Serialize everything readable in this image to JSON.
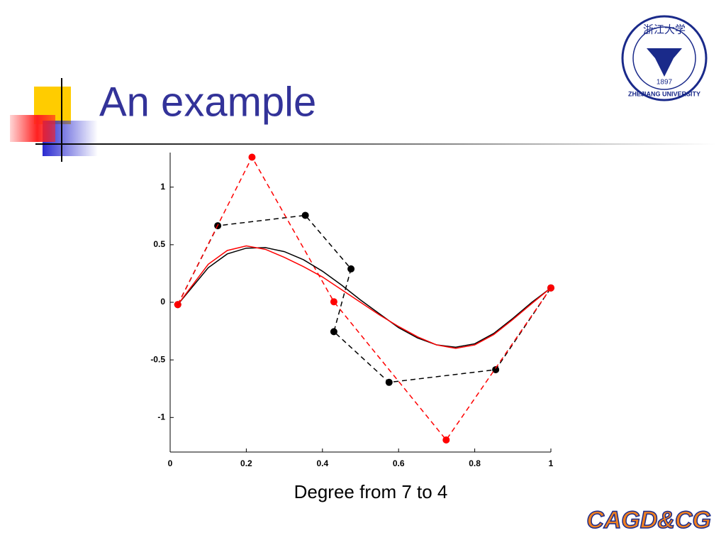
{
  "title": "An example",
  "logo": {
    "chinese": "浙江大学",
    "year": "1897",
    "name": "ZHEJIANG UNIVERSITY"
  },
  "footer_logo": "CAGD&CG",
  "chart_data": {
    "type": "line",
    "xlabel": "Degree from 7 to 4",
    "xlim": [
      0,
      1
    ],
    "ylim": [
      -1.3,
      1.3
    ],
    "xticks": [
      0,
      0.2,
      0.4,
      0.6,
      0.8,
      1
    ],
    "yticks": [
      -1,
      -0.5,
      0,
      0.5,
      1
    ],
    "series": [
      {
        "color": "#000000",
        "dashed": true,
        "markers": true,
        "x": [
          0.02,
          0.125,
          0.355,
          0.475,
          0.43,
          0.575,
          0.855,
          1.0
        ],
        "values": [
          -0.02,
          0.665,
          0.755,
          0.29,
          -0.255,
          -0.695,
          -0.585,
          0.125
        ]
      },
      {
        "color": "#ff0000",
        "dashed": true,
        "markers": true,
        "x": [
          0.02,
          0.215,
          0.43,
          0.725,
          1.0
        ],
        "values": [
          -0.02,
          1.26,
          0.005,
          -1.195,
          0.125
        ]
      },
      {
        "color": "#000000",
        "dashed": false,
        "markers": false,
        "x": [
          0.02,
          0.1,
          0.15,
          0.2,
          0.25,
          0.3,
          0.35,
          0.4,
          0.45,
          0.5,
          0.55,
          0.6,
          0.65,
          0.7,
          0.75,
          0.8,
          0.85,
          0.9,
          0.95,
          1.0
        ],
        "values": [
          -0.02,
          0.3,
          0.42,
          0.47,
          0.475,
          0.44,
          0.37,
          0.27,
          0.15,
          0.02,
          -0.1,
          -0.22,
          -0.31,
          -0.37,
          -0.39,
          -0.36,
          -0.27,
          -0.14,
          0.0,
          0.125
        ]
      },
      {
        "color": "#ff0000",
        "dashed": false,
        "markers": false,
        "x": [
          0.02,
          0.1,
          0.15,
          0.2,
          0.25,
          0.3,
          0.35,
          0.4,
          0.45,
          0.5,
          0.55,
          0.6,
          0.65,
          0.7,
          0.75,
          0.8,
          0.85,
          0.9,
          0.95,
          1.0
        ],
        "values": [
          -0.02,
          0.33,
          0.45,
          0.49,
          0.46,
          0.39,
          0.31,
          0.22,
          0.11,
          0.0,
          -0.11,
          -0.21,
          -0.3,
          -0.37,
          -0.4,
          -0.37,
          -0.28,
          -0.15,
          -0.01,
          0.125
        ]
      }
    ]
  }
}
